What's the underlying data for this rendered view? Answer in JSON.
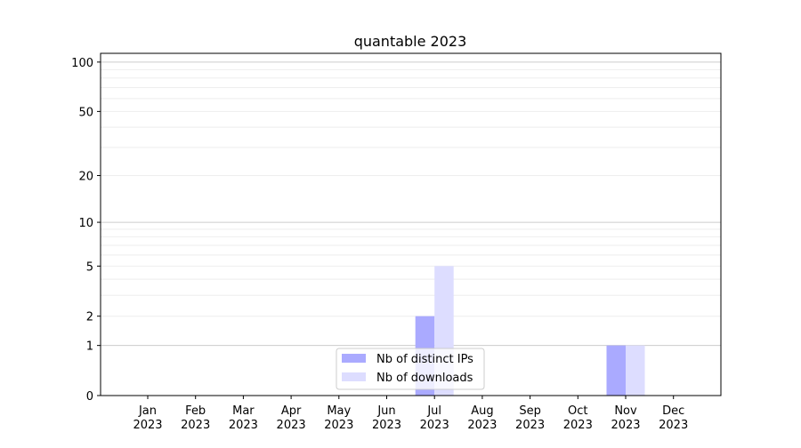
{
  "chart_data": {
    "type": "bar",
    "title": "quantable 2023",
    "xlabel": "",
    "ylabel": "",
    "yscale": "log(1+y)",
    "ylim": [
      0,
      113
    ],
    "yticks": [
      0,
      1,
      2,
      5,
      10,
      20,
      50,
      100
    ],
    "grid": true,
    "legend_position": "lower-center",
    "categories": [
      "Jan\n2023",
      "Feb\n2023",
      "Mar\n2023",
      "Apr\n2023",
      "May\n2023",
      "Jun\n2023",
      "Jul\n2023",
      "Aug\n2023",
      "Sep\n2023",
      "Oct\n2023",
      "Nov\n2023",
      "Dec\n2023"
    ],
    "series": [
      {
        "name": "Nb of distinct IPs",
        "color": "#aaaaff",
        "values": [
          0,
          0,
          0,
          0,
          0,
          0,
          2,
          0,
          0,
          0,
          1,
          0
        ]
      },
      {
        "name": "Nb of downloads",
        "color": "#ddddff",
        "values": [
          0,
          0,
          0,
          0,
          0,
          0,
          5,
          0,
          0,
          0,
          1,
          0
        ]
      }
    ]
  }
}
